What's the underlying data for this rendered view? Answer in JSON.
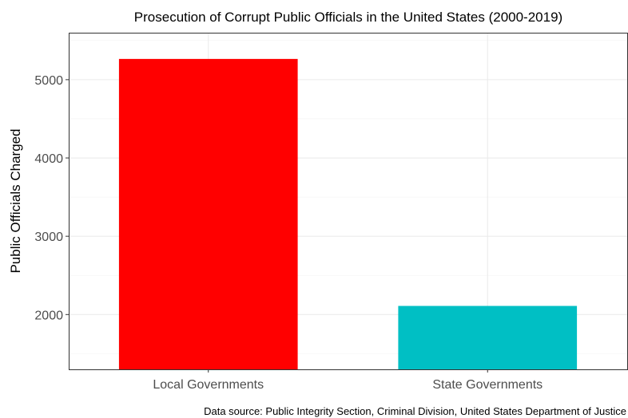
{
  "chart_data": {
    "type": "bar",
    "title": "Prosecution of Corrupt Public Officials in the United States (2000-2019)",
    "xlabel": "",
    "ylabel": "Public Officials Charged",
    "categories": [
      "Local Governments",
      "State Governments"
    ],
    "values": [
      5265,
      2110
    ],
    "colors": [
      "#ff0000",
      "#00bfc4"
    ],
    "ylim": [
      1300,
      5600
    ],
    "yticks": [
      2000,
      3000,
      4000,
      5000
    ],
    "grid": true,
    "legend": "none",
    "caption": "Data source: Public Integrity Section, Criminal Division, United States Department of Justice"
  }
}
